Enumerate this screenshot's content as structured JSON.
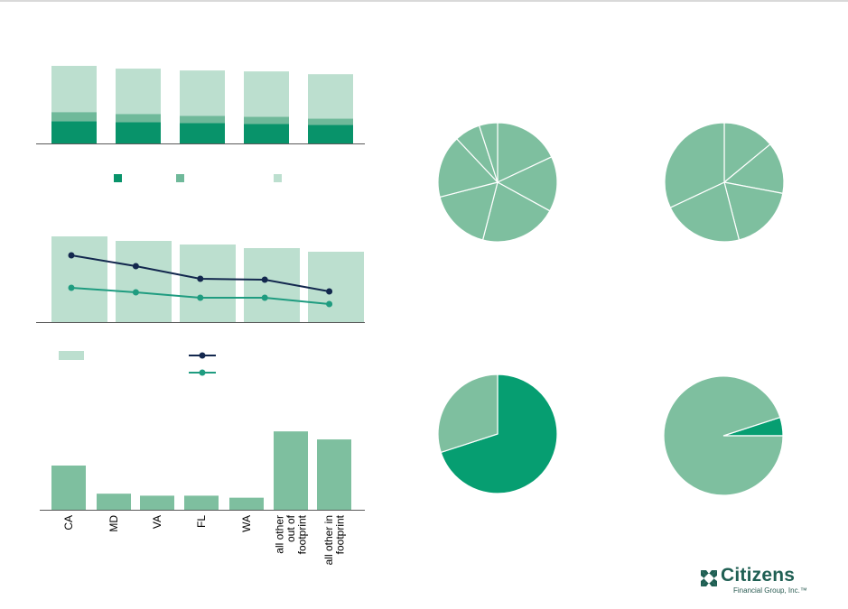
{
  "colors": {
    "dark_green": "#08936a",
    "mid_green": "#6fb99a",
    "light_green": "#bcdfcf",
    "pie_green": "#7ebf9f",
    "pie_dark": "#069e71",
    "line_navy": "#13284e",
    "line_teal": "#1f9c80",
    "axis": "#595959",
    "logo_green": "#1f5f53"
  },
  "chart_data": [
    {
      "type": "bar",
      "stacked": true,
      "categories": [
        "",
        "",
        "",
        "",
        ""
      ],
      "series": [
        {
          "color_key": "dark_green",
          "values": [
            24,
            23,
            22,
            21,
            20
          ]
        },
        {
          "color_key": "mid_green",
          "values": [
            10,
            9,
            8,
            8,
            7
          ]
        },
        {
          "color_key": "light_green",
          "values": [
            50,
            49,
            49,
            49,
            48
          ]
        }
      ],
      "ylim": [
        0,
        84
      ],
      "legend": "bottom"
    },
    {
      "type": "bar",
      "categories": [
        "",
        "",
        "",
        "",
        ""
      ],
      "series": [
        {
          "color_key": "light_green",
          "values": [
            95,
            90,
            86,
            82,
            78
          ]
        }
      ],
      "lines": [
        {
          "color_key": "line_navy",
          "values": [
            74,
            62,
            48,
            47,
            34
          ]
        },
        {
          "color_key": "line_teal",
          "values": [
            38,
            33,
            27,
            27,
            20
          ]
        }
      ],
      "ylim": [
        0,
        100
      ],
      "legend": "bottom"
    },
    {
      "type": "bar",
      "categories": [
        "CA",
        "MD",
        "VA",
        "FL",
        "WA",
        "all other out of footprint",
        "all other in footprint"
      ],
      "category_lines": [
        [
          "CA"
        ],
        [
          "MD"
        ],
        [
          "VA"
        ],
        [
          "FL"
        ],
        [
          "WA"
        ],
        [
          "all other",
          "out of",
          "footprint"
        ],
        [
          "all other in",
          "footprint"
        ]
      ],
      "values": [
        11,
        4,
        3.5,
        3.5,
        3,
        19.5,
        17.5
      ],
      "ylim": [
        0,
        22
      ],
      "color_key": "pie_green"
    },
    {
      "type": "pie",
      "values": [
        18,
        15,
        21,
        17,
        17,
        7,
        5
      ],
      "start_angle_deg": 0,
      "color_key": "pie_green"
    },
    {
      "type": "pie",
      "values": [
        14,
        14,
        18,
        22,
        32
      ],
      "start_angle_deg": 0,
      "color_key": "pie_green"
    },
    {
      "type": "pie",
      "values": [
        70,
        30
      ],
      "start_angle_deg": 0,
      "colors": [
        "pie_dark",
        "pie_green"
      ]
    },
    {
      "type": "pie",
      "values": [
        5,
        95
      ],
      "start_angle_deg": 72,
      "colors": [
        "pie_dark",
        "pie_green"
      ]
    }
  ],
  "logo": {
    "name": "Citizens",
    "sub": "Financial Group, Inc.",
    "tm": "™"
  }
}
